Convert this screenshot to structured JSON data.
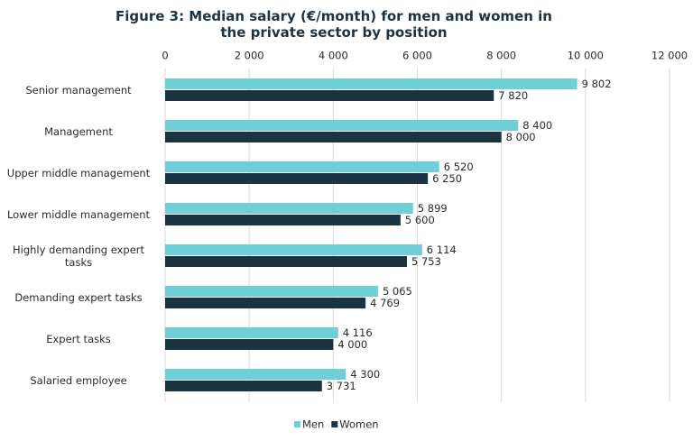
{
  "chart_data": {
    "type": "hbar",
    "title": "Figure 3: Median salary (€/month) for men and women in the private sector by position",
    "categories": [
      "Senior management",
      "Management",
      "Upper middle management",
      "Lower middle management",
      "Highly demanding expert tasks",
      "Demanding expert tasks",
      "Expert tasks",
      "Salaried employee"
    ],
    "series": [
      {
        "name": "Men",
        "color": "#6fcfd6",
        "values": [
          9802,
          8400,
          6520,
          5899,
          6114,
          5065,
          4116,
          4300
        ],
        "value_labels": [
          "9 802",
          "8 400",
          "6 520",
          "5 899",
          "6 114",
          "5 065",
          "4 116",
          "4 300"
        ]
      },
      {
        "name": "Women",
        "color": "#1c3340",
        "values": [
          7820,
          8000,
          6250,
          5600,
          5753,
          4769,
          4000,
          3731
        ],
        "value_labels": [
          "7 820",
          "8 000",
          "6 250",
          "5 600",
          "5 753",
          "4 769",
          "4 000",
          "3 731"
        ]
      }
    ],
    "xlim": [
      0,
      12000
    ],
    "xticks": [
      0,
      {
        "value": 2000,
        "label": "2 000"
      },
      {
        "value": 4000,
        "label": "4 000"
      },
      {
        "value": 6000,
        "label": "6 000"
      },
      {
        "value": 8000,
        "label": "8 000"
      },
      {
        "value": 10000,
        "label": "10 000"
      },
      {
        "value": 12000,
        "label": "12 000"
      }
    ],
    "grid": true,
    "legend": "bottom"
  }
}
